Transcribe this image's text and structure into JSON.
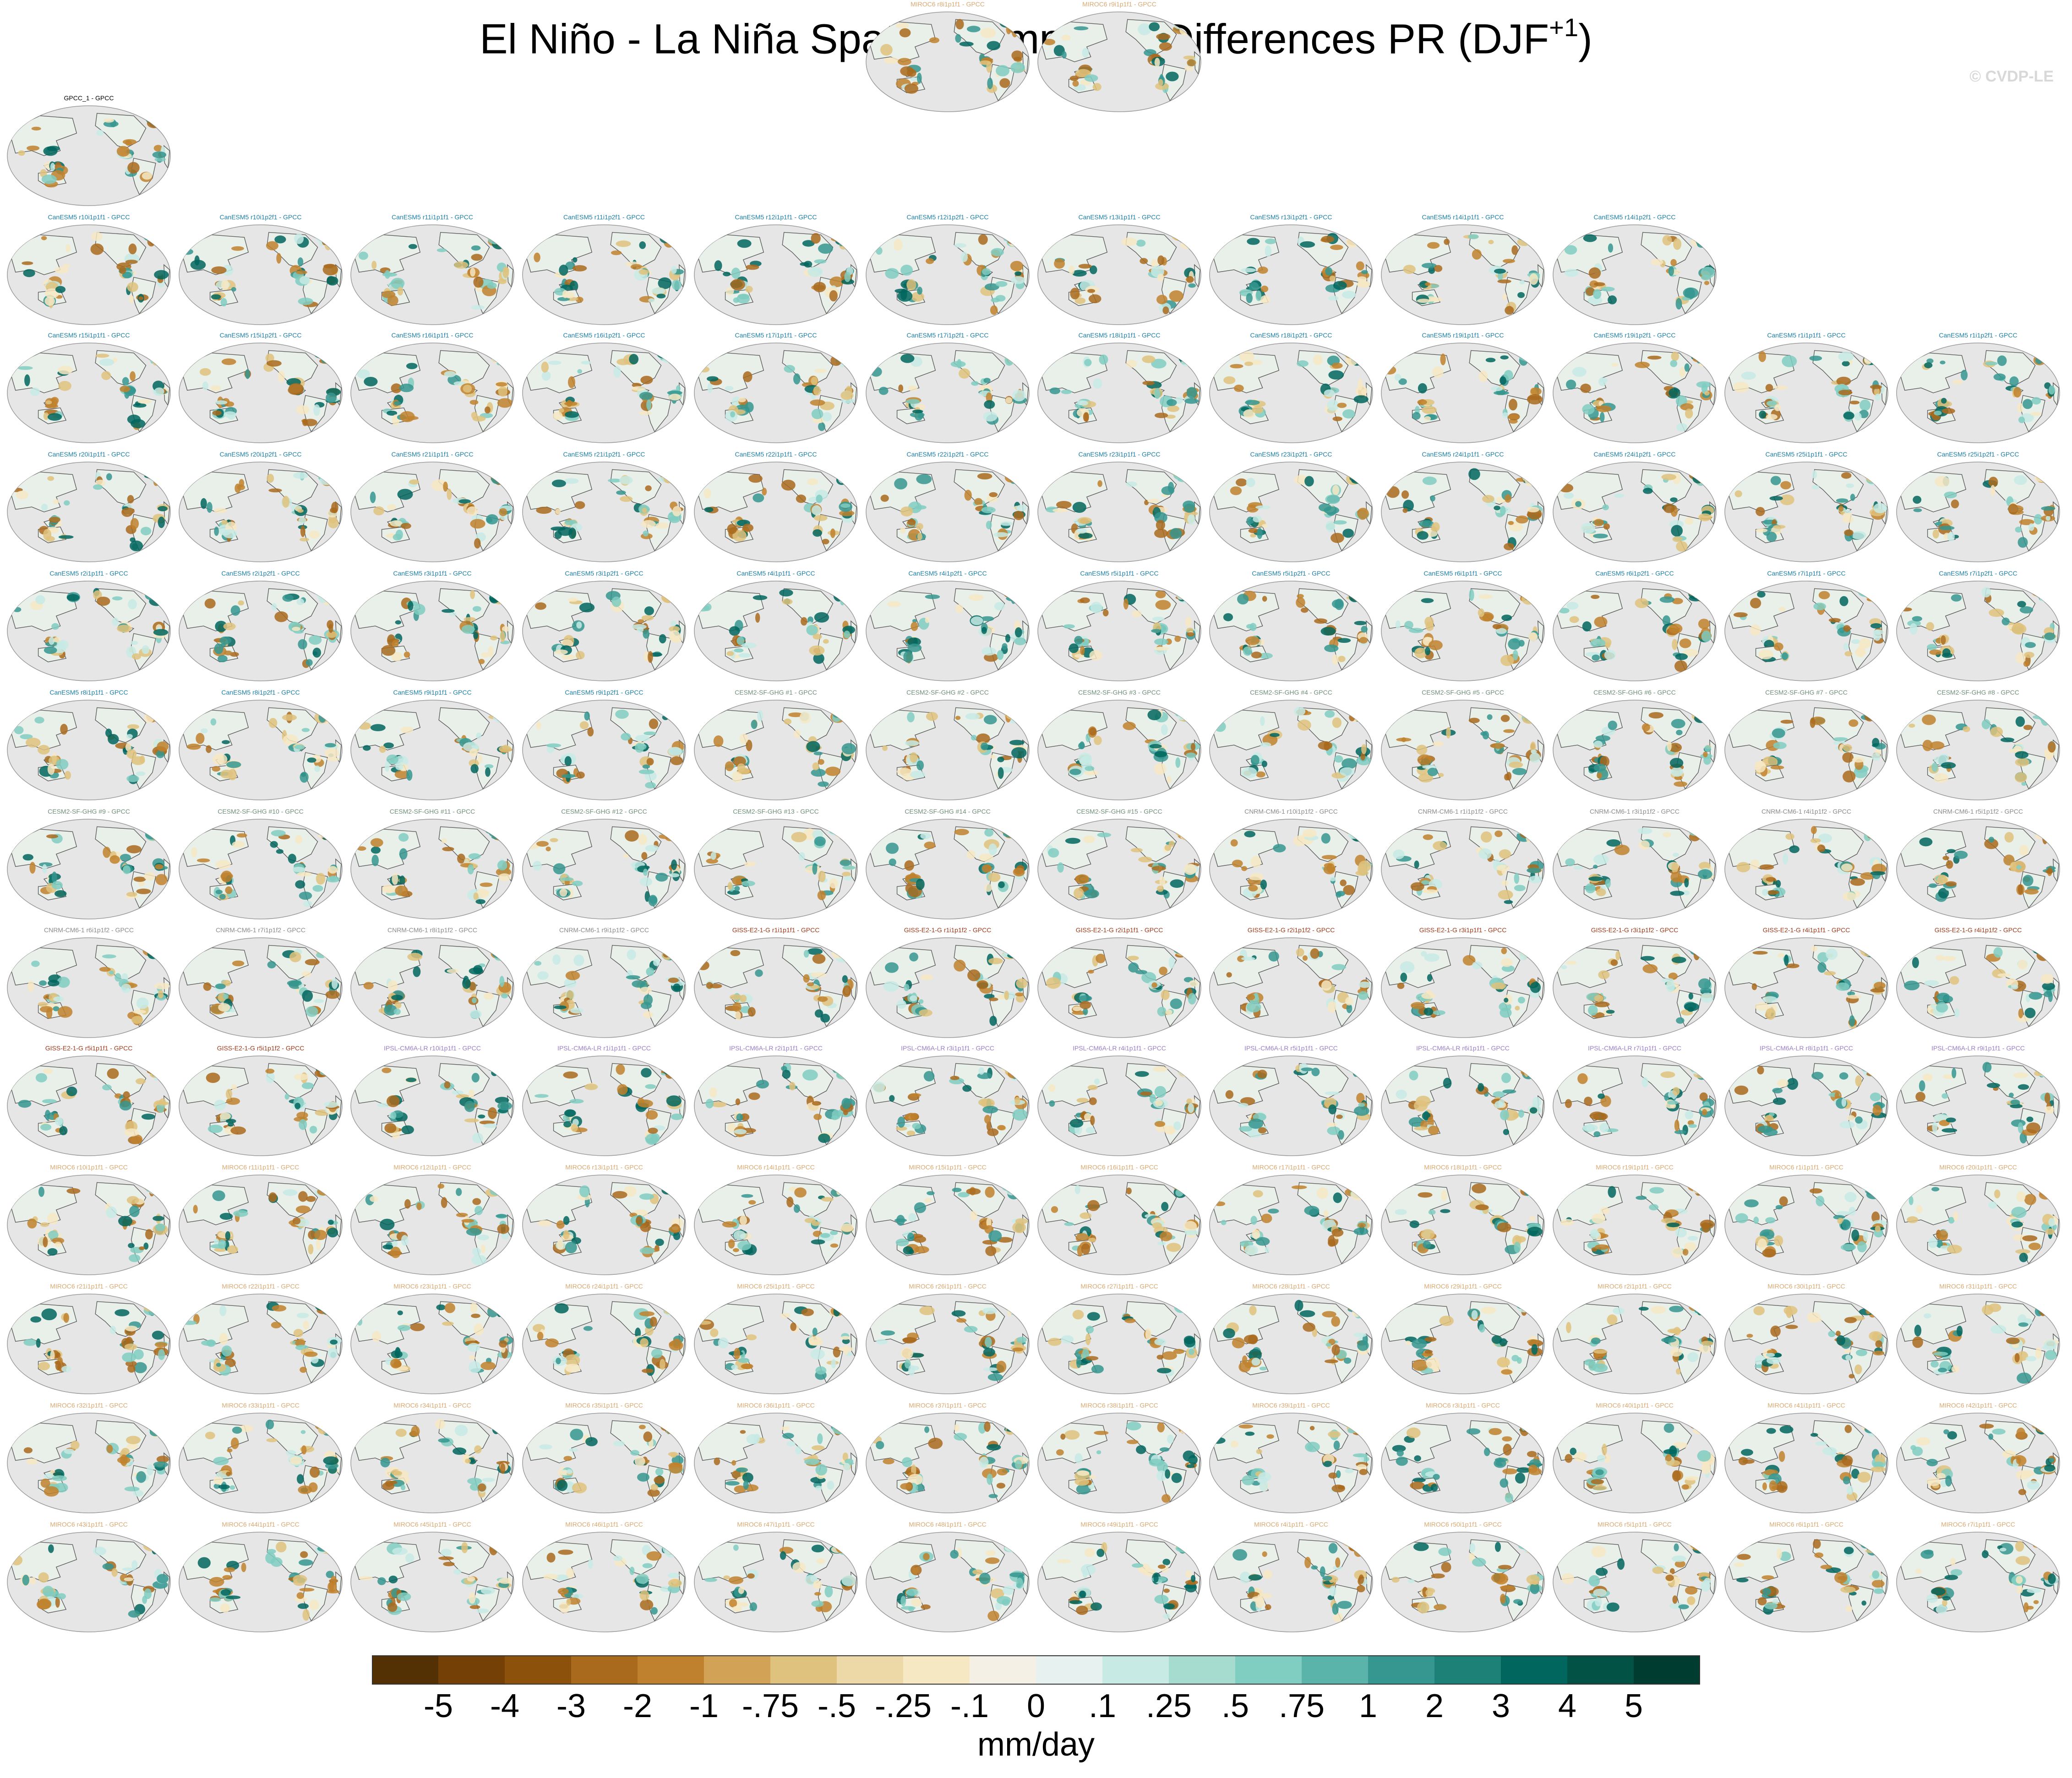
{
  "chart_data": {
    "type": "heatmap",
    "title_main": "El Niño - La Niña Spatial Composite Differences PR (DJF",
    "title_sup": "+1",
    "title_end": ")",
    "watermark": "© CVDP-LE",
    "units": "mm/day",
    "colorbar": {
      "tick_labels": [
        "-5",
        "-4",
        "-3",
        "-2",
        "-1",
        "-.75",
        "-.5",
        "-.25",
        "-.1",
        "0",
        ".1",
        ".25",
        ".5",
        ".75",
        "1",
        "2",
        "3",
        "4",
        "5"
      ],
      "colors": [
        "#543005",
        "#744005",
        "#8c510a",
        "#a96a1d",
        "#bf812d",
        "#d2a256",
        "#dfc27d",
        "#edd9a7",
        "#f6e8c3",
        "#f5f0e6",
        "#e7f1ef",
        "#c7eae5",
        "#a6dbd0",
        "#80cdc1",
        "#5ab4a9",
        "#35978f",
        "#1e8178",
        "#01665e",
        "#035246",
        "#003c30"
      ]
    },
    "rows": [
      {
        "color": "#000000",
        "panels": [
          "GPCC_1 - GPCC"
        ]
      },
      {
        "color": "#1a7fa8",
        "panels": [
          "CanESM5 r10i1p1f1 - GPCC",
          "CanESM5 r10i1p2f1 - GPCC",
          "CanESM5 r11i1p1f1 - GPCC",
          "CanESM5 r11i1p2f1 - GPCC",
          "CanESM5 r12i1p1f1 - GPCC",
          "CanESM5 r12i1p2f1 - GPCC",
          "CanESM5 r13i1p1f1 - GPCC",
          "CanESM5 r13i1p2f1 - GPCC",
          "CanESM5 r14i1p1f1 - GPCC",
          "CanESM5 r14i1p2f1 - GPCC"
        ]
      },
      {
        "color": "#1a7fa8",
        "panels": [
          "CanESM5 r15i1p1f1 - GPCC",
          "CanESM5 r15i1p2f1 - GPCC",
          "CanESM5 r16i1p1f1 - GPCC",
          "CanESM5 r16i1p2f1 - GPCC",
          "CanESM5 r17i1p1f1 - GPCC",
          "CanESM5 r17i1p2f1 - GPCC",
          "CanESM5 r18i1p1f1 - GPCC",
          "CanESM5 r18i1p2f1 - GPCC",
          "CanESM5 r19i1p1f1 - GPCC",
          "CanESM5 r19i1p2f1 - GPCC",
          "CanESM5 r1i1p1f1 - GPCC",
          "CanESM5 r1i1p2f1 - GPCC"
        ]
      },
      {
        "color": "#1a7fa8",
        "panels": [
          "CanESM5 r20i1p1f1 - GPCC",
          "CanESM5 r20i1p2f1 - GPCC",
          "CanESM5 r21i1p1f1 - GPCC",
          "CanESM5 r21i1p2f1 - GPCC",
          "CanESM5 r22i1p1f1 - GPCC",
          "CanESM5 r22i1p2f1 - GPCC",
          "CanESM5 r23i1p1f1 - GPCC",
          "CanESM5 r23i1p2f1 - GPCC",
          "CanESM5 r24i1p1f1 - GPCC",
          "CanESM5 r24i1p2f1 - GPCC",
          "CanESM5 r25i1p1f1 - GPCC",
          "CanESM5 r25i1p2f1 - GPCC"
        ]
      },
      {
        "color": "#1a7fa8",
        "panels": [
          "CanESM5 r2i1p1f1 - GPCC",
          "CanESM5 r2i1p2f1 - GPCC",
          "CanESM5 r3i1p1f1 - GPCC",
          "CanESM5 r3i1p2f1 - GPCC",
          "CanESM5 r4i1p1f1 - GPCC",
          "CanESM5 r4i1p2f1 - GPCC",
          "CanESM5 r5i1p1f1 - GPCC",
          "CanESM5 r5i1p2f1 - GPCC",
          "CanESM5 r6i1p1f1 - GPCC",
          "CanESM5 r6i1p2f1 - GPCC",
          "CanESM5 r7i1p1f1 - GPCC",
          "CanESM5 r7i1p2f1 - GPCC"
        ]
      },
      {
        "color": "#1a7fa8",
        "panels": [
          "CanESM5 r8i1p1f1 - GPCC",
          "CanESM5 r8i1p2f1 - GPCC",
          "CanESM5 r9i1p1f1 - GPCC",
          "CanESM5 r9i1p2f1 - GPCC"
        ],
        "color2": "#6f8f7a",
        "panels2": [
          "CESM2-SF-GHG #1 - GPCC",
          "CESM2-SF-GHG #2 - GPCC",
          "CESM2-SF-GHG #3 - GPCC",
          "CESM2-SF-GHG #4 - GPCC",
          "CESM2-SF-GHG #5 - GPCC",
          "CESM2-SF-GHG #6 - GPCC",
          "CESM2-SF-GHG #7 - GPCC",
          "CESM2-SF-GHG #8 - GPCC"
        ]
      },
      {
        "color": "#6f8f7a",
        "panels": [
          "CESM2-SF-GHG #9 - GPCC",
          "CESM2-SF-GHG #10 - GPCC",
          "CESM2-SF-GHG #11 - GPCC",
          "CESM2-SF-GHG #12 - GPCC",
          "CESM2-SF-GHG #13 - GPCC",
          "CESM2-SF-GHG #14 - GPCC",
          "CESM2-SF-GHG #15 - GPCC"
        ],
        "color2": "#8a8a8a",
        "panels2": [
          "CNRM-CM6-1 r10i1p1f2 - GPCC",
          "CNRM-CM6-1 r1i1p1f2 - GPCC",
          "CNRM-CM6-1 r3i1p1f2 - GPCC",
          "CNRM-CM6-1 r4i1p1f2 - GPCC",
          "CNRM-CM6-1 r5i1p1f2 - GPCC"
        ]
      },
      {
        "color": "#8a8a8a",
        "panels": [
          "CNRM-CM6-1 r6i1p1f2 - GPCC",
          "CNRM-CM6-1 r7i1p1f2 - GPCC",
          "CNRM-CM6-1 r8i1p1f2 - GPCC",
          "CNRM-CM6-1 r9i1p1f2 - GPCC"
        ],
        "color2": "#a0391a",
        "panels2": [
          "GISS-E2-1-G r1i1p1f1 - GPCC",
          "GISS-E2-1-G r1i1p1f2 - GPCC",
          "GISS-E2-1-G r2i1p1f1 - GPCC",
          "GISS-E2-1-G r2i1p1f2 - GPCC",
          "GISS-E2-1-G r3i1p1f1 - GPCC",
          "GISS-E2-1-G r3i1p1f2 - GPCC",
          "GISS-E2-1-G r4i1p1f1 - GPCC",
          "GISS-E2-1-G r4i1p1f2 - GPCC"
        ]
      },
      {
        "color": "#a0391a",
        "panels": [
          "GISS-E2-1-G r5i1p1f1 - GPCC",
          "GISS-E2-1-G r5i1p1f2 - GPCC"
        ],
        "color2": "#9a7ec8",
        "panels2": [
          "IPSL-CM6A-LR r10i1p1f1 - GPCC",
          "IPSL-CM6A-LR r1i1p1f1 - GPCC",
          "IPSL-CM6A-LR r2i1p1f1 - GPCC",
          "IPSL-CM6A-LR r3i1p1f1 - GPCC",
          "IPSL-CM6A-LR r4i1p1f1 - GPCC",
          "IPSL-CM6A-LR r5i1p1f1 - GPCC",
          "IPSL-CM6A-LR r6i1p1f1 - GPCC",
          "IPSL-CM6A-LR r7i1p1f1 - GPCC",
          "IPSL-CM6A-LR r8i1p1f1 - GPCC",
          "IPSL-CM6A-LR r9i1p1f1 - GPCC"
        ]
      },
      {
        "color": "#d9a870",
        "panels": [
          "MIROC6 r10i1p1f1 - GPCC",
          "MIROC6 r11i1p1f1 - GPCC",
          "MIROC6 r12i1p1f1 - GPCC",
          "MIROC6 r13i1p1f1 - GPCC",
          "MIROC6 r14i1p1f1 - GPCC",
          "MIROC6 r15i1p1f1 - GPCC",
          "MIROC6 r16i1p1f1 - GPCC",
          "MIROC6 r17i1p1f1 - GPCC",
          "MIROC6 r18i1p1f1 - GPCC",
          "MIROC6 r19i1p1f1 - GPCC",
          "MIROC6 r1i1p1f1 - GPCC",
          "MIROC6 r20i1p1f1 - GPCC"
        ]
      },
      {
        "color": "#d9a870",
        "panels": [
          "MIROC6 r21i1p1f1 - GPCC",
          "MIROC6 r22i1p1f1 - GPCC",
          "MIROC6 r23i1p1f1 - GPCC",
          "MIROC6 r24i1p1f1 - GPCC",
          "MIROC6 r25i1p1f1 - GPCC",
          "MIROC6 r26i1p1f1 - GPCC",
          "MIROC6 r27i1p1f1 - GPCC",
          "MIROC6 r28i1p1f1 - GPCC",
          "MIROC6 r29i1p1f1 - GPCC",
          "MIROC6 r2i1p1f1 - GPCC",
          "MIROC6 r30i1p1f1 - GPCC",
          "MIROC6 r31i1p1f1 - GPCC"
        ]
      },
      {
        "color": "#d9a870",
        "panels": [
          "MIROC6 r32i1p1f1 - GPCC",
          "MIROC6 r33i1p1f1 - GPCC",
          "MIROC6 r34i1p1f1 - GPCC",
          "MIROC6 r35i1p1f1 - GPCC",
          "MIROC6 r36i1p1f1 - GPCC",
          "MIROC6 r37i1p1f1 - GPCC",
          "MIROC6 r38i1p1f1 - GPCC",
          "MIROC6 r39i1p1f1 - GPCC",
          "MIROC6 r3i1p1f1 - GPCC",
          "MIROC6 r40i1p1f1 - GPCC",
          "MIROC6 r41i1p1f1 - GPCC",
          "MIROC6 r42i1p1f1 - GPCC"
        ]
      },
      {
        "color": "#d9a870",
        "panels": [
          "MIROC6 r43i1p1f1 - GPCC",
          "MIROC6 r44i1p1f1 - GPCC",
          "MIROC6 r45i1p1f1 - GPCC",
          "MIROC6 r46i1p1f1 - GPCC",
          "MIROC6 r47i1p1f1 - GPCC",
          "MIROC6 r48i1p1f1 - GPCC",
          "MIROC6 r49i1p1f1 - GPCC",
          "MIROC6 r4i1p1f1 - GPCC",
          "MIROC6 r50i1p1f1 - GPCC",
          "MIROC6 r5i1p1f1 - GPCC",
          "MIROC6 r6i1p1f1 - GPCC",
          "MIROC6 r7i1p1f1 - GPCC"
        ]
      },
      {
        "color": "#d9a870",
        "panels": [
          "MIROC6 r8i1p1f1 - GPCC",
          "MIROC6 r9i1p1f1 - GPCC"
        ]
      }
    ]
  }
}
